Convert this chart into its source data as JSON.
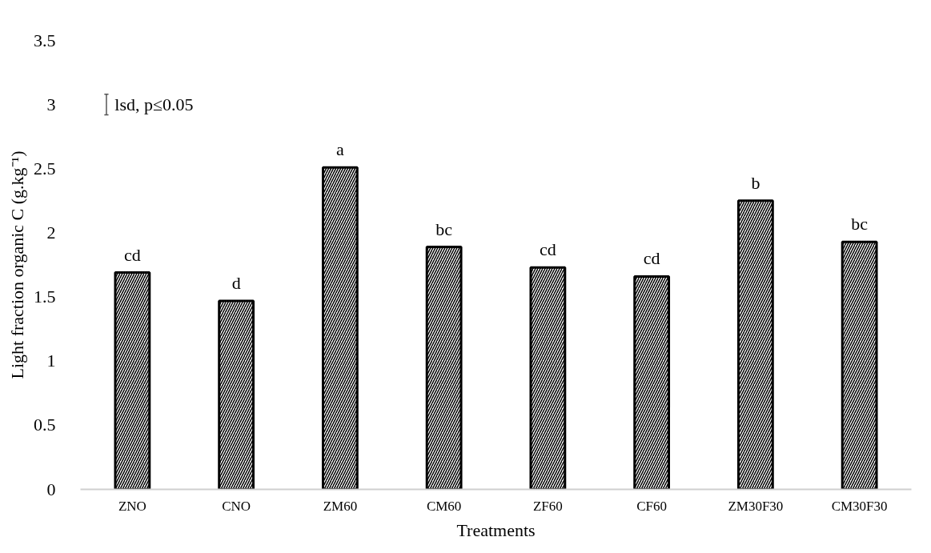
{
  "chart_data": {
    "type": "bar",
    "xlabel": "Treatments",
    "ylabel": "Light fraction organic C (g.kg⁻¹)",
    "categories": [
      "ZNO",
      "CNO",
      "ZM60",
      "CM60",
      "ZF60",
      "CF60",
      "ZM30F30",
      "CM30F30"
    ],
    "values": [
      1.69,
      1.47,
      2.51,
      1.89,
      1.73,
      1.66,
      2.25,
      1.93
    ],
    "color": "#000000",
    "ylim": [
      0,
      3.5
    ],
    "yticks": [
      0,
      0.5,
      1,
      1.5,
      2,
      2.5,
      3,
      3.5
    ],
    "grid": false,
    "annotations": [
      "lsd, p≤0.05",
      {
        "text": "cd",
        "x": "ZNO",
        "y": 1.69
      },
      {
        "text": "d",
        "x": "CNO",
        "y": 1.47
      },
      {
        "text": "a",
        "x": "ZM60",
        "y": 2.51
      },
      {
        "text": "bc",
        "x": "CM60",
        "y": 1.89
      },
      {
        "text": "cd",
        "x": "ZF60",
        "y": 1.73
      },
      {
        "text": "cd",
        "x": "CF60",
        "y": 1.66
      },
      {
        "text": "b",
        "x": "ZM30F30",
        "y": 2.25
      },
      {
        "text": "bc",
        "x": "CM30F30",
        "y": 1.93
      }
    ]
  }
}
